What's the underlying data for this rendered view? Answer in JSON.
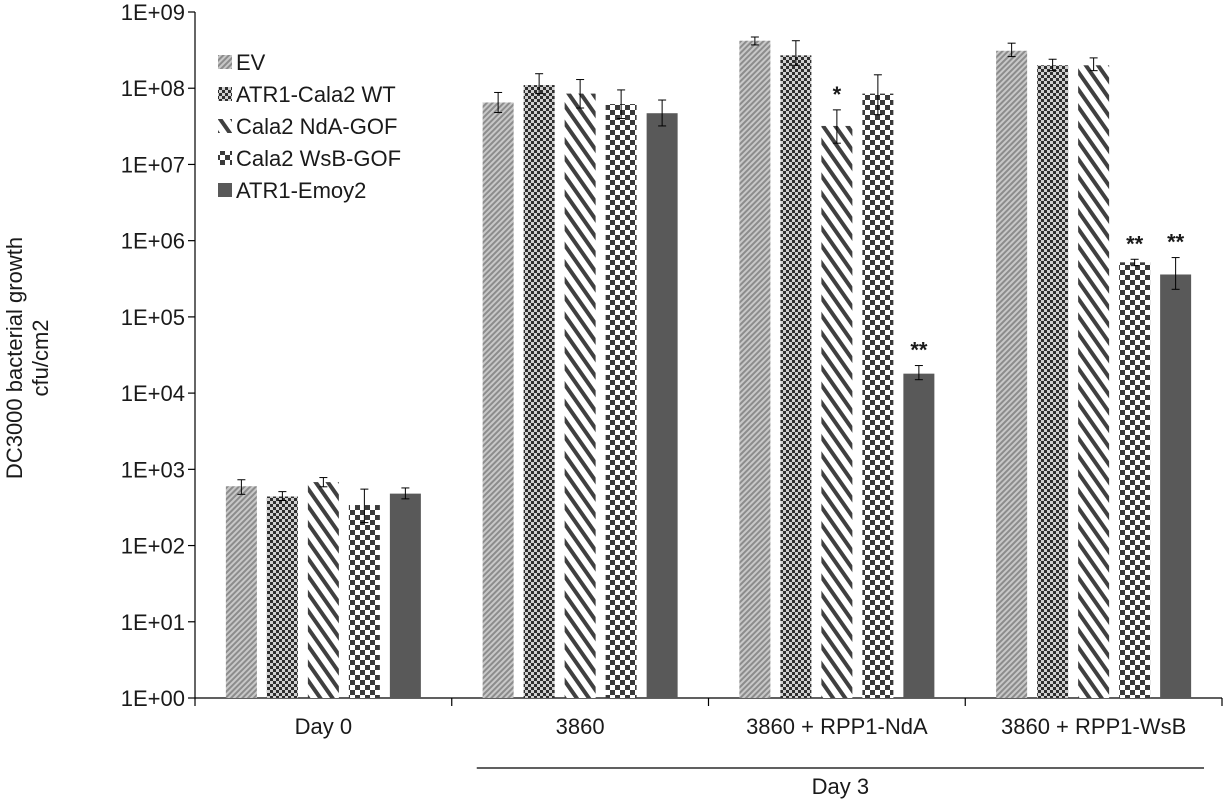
{
  "chart_data": {
    "type": "bar",
    "title": "",
    "ylabel_lines": [
      "DC3000 bacterial growth",
      "cfu/cm2"
    ],
    "xlabel": "",
    "y_scale": "log10",
    "ylim": [
      1,
      1000000000
    ],
    "y_ticks": [
      {
        "value": 1,
        "label": "1E+00"
      },
      {
        "value": 10,
        "label": "1E+01"
      },
      {
        "value": 100,
        "label": "1E+02"
      },
      {
        "value": 1000,
        "label": "1E+03"
      },
      {
        "value": 10000,
        "label": "1E+04"
      },
      {
        "value": 100000,
        "label": "1E+05"
      },
      {
        "value": 1000000,
        "label": "1E+06"
      },
      {
        "value": 10000000,
        "label": "1E+07"
      },
      {
        "value": 100000000,
        "label": "1E+08"
      },
      {
        "value": 1000000000,
        "label": "1E+09"
      }
    ],
    "grid": false,
    "legend_position": "top-left",
    "categories": [
      "Day 0",
      "3860",
      "3860 + RPP1-NdA",
      "3860 + RPP1-WsB"
    ],
    "group_label": {
      "text": "Day 3",
      "from": 1,
      "to": 3
    },
    "series": [
      {
        "name": "EV",
        "pattern": "fine-diagonal",
        "color": "#a6a6a6",
        "values": [
          600,
          65000000,
          420000000,
          310000000
        ],
        "errors_low": [
          470,
          48000000,
          370000000,
          260000000
        ],
        "errors_high": [
          730,
          88000000,
          470000000,
          390000000
        ],
        "annotations": [
          "",
          "",
          "",
          ""
        ]
      },
      {
        "name": "ATR1-Cala2 WT",
        "pattern": "checker",
        "color": "#3f3f3f",
        "values": [
          440,
          110000000,
          270000000,
          200000000
        ],
        "errors_low": [
          390,
          85000000,
          200000000,
          170000000
        ],
        "errors_high": [
          510,
          155000000,
          420000000,
          240000000
        ],
        "annotations": [
          "",
          "",
          "",
          ""
        ]
      },
      {
        "name": "Cala2 NdA-GOF",
        "pattern": "wide-diagonal",
        "color": "#404040",
        "values": [
          680,
          85000000,
          32000000,
          200000000
        ],
        "errors_low": [
          590,
          55000000,
          19000000,
          170000000
        ],
        "errors_high": [
          780,
          130000000,
          52000000,
          250000000
        ],
        "annotations": [
          "",
          "",
          "*",
          ""
        ]
      },
      {
        "name": "Cala2 WsB-GOF",
        "pattern": "coarse-checker",
        "color": "#3a3a3a",
        "values": [
          340,
          62000000,
          85000000,
          520000
        ],
        "errors_low": [
          200,
          40000000,
          45000000,
          470000
        ],
        "errors_high": [
          550,
          95000000,
          150000000,
          570000
        ],
        "annotations": [
          "",
          "",
          "",
          "**"
        ]
      },
      {
        "name": "ATR1-Emoy2",
        "pattern": "solid",
        "color": "#595959",
        "values": [
          480,
          47000000,
          18000,
          360000
        ],
        "errors_low": [
          410,
          32000000,
          15000,
          230000
        ],
        "errors_high": [
          570,
          70000000,
          23000,
          600000
        ],
        "annotations": [
          "",
          "",
          "**",
          "**"
        ]
      }
    ]
  }
}
